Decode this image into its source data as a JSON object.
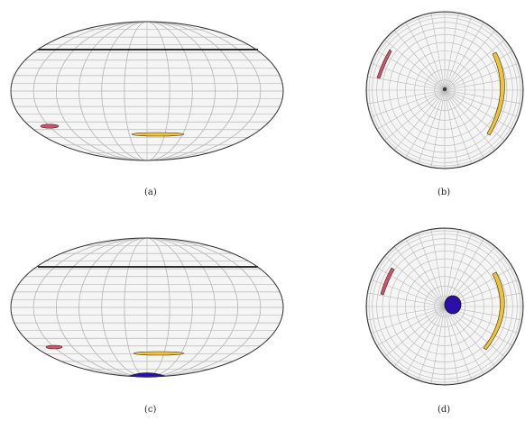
{
  "panels": [
    {
      "id": "a",
      "label": "(a)",
      "kind": "mollweide",
      "black_disk": false
    },
    {
      "id": "b",
      "label": "(b)",
      "kind": "polar",
      "black_disk": false
    },
    {
      "id": "c",
      "label": "(c)",
      "kind": "mollweide",
      "black_disk": true
    },
    {
      "id": "d",
      "label": "(d)",
      "kind": "polar",
      "black_disk": true
    }
  ],
  "colors": {
    "grid": "#b8b8b8",
    "outline": "#333333",
    "fill": "#f5f5f5",
    "red_region": "#d64f6a",
    "yellow_region": "#f2c230",
    "blue_region": "#2a0fa8",
    "horizon_line": "#111111"
  }
}
